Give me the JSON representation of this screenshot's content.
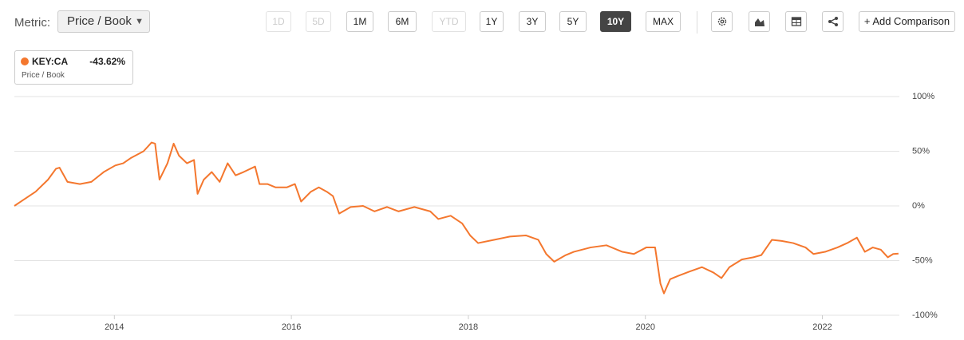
{
  "toolbar": {
    "metric_label": "Metric:",
    "metric_value": "Price / Book",
    "ranges": [
      "1D",
      "5D",
      "1M",
      "6M",
      "YTD",
      "1Y",
      "3Y",
      "5Y",
      "10Y",
      "MAX"
    ],
    "active_index": 8,
    "disabled_indices": [
      0,
      1,
      4
    ],
    "add_comparison": "+ Add Comparison"
  },
  "legend": {
    "change": "-43.62%",
    "subtitle": "Price / Book"
  },
  "chart_data": {
    "type": "line",
    "x": [
      2012.87,
      2012.98,
      2013.11,
      2013.25,
      2013.34,
      2013.38,
      2013.47,
      2013.61,
      2013.74,
      2013.88,
      2014.01,
      2014.1,
      2014.19,
      2014.33,
      2014.42,
      2014.46,
      2014.51,
      2014.6,
      2014.67,
      2014.73,
      2014.82,
      2014.9,
      2014.94,
      2015.01,
      2015.1,
      2015.19,
      2015.28,
      2015.37,
      2015.46,
      2015.59,
      2015.64,
      2015.73,
      2015.82,
      2015.95,
      2016.04,
      2016.11,
      2016.22,
      2016.31,
      2016.4,
      2016.47,
      2016.54,
      2016.67,
      2016.81,
      2016.94,
      2017.08,
      2017.21,
      2017.39,
      2017.57,
      2017.66,
      2017.8,
      2017.93,
      2018.02,
      2018.11,
      2018.29,
      2018.47,
      2018.65,
      2018.79,
      2018.88,
      2018.97,
      2019.1,
      2019.19,
      2019.38,
      2019.56,
      2019.74,
      2019.87,
      2020.01,
      2020.11,
      2020.17,
      2020.21,
      2020.28,
      2020.37,
      2020.5,
      2020.64,
      2020.77,
      2020.86,
      2020.95,
      2021.09,
      2021.22,
      2021.31,
      2021.43,
      2021.54,
      2021.67,
      2021.81,
      2021.9,
      2022.03,
      2022.17,
      2022.28,
      2022.39,
      2022.48,
      2022.57,
      2022.66,
      2022.74,
      2022.8,
      2022.86
    ],
    "series": [
      {
        "name": "KEY:CA",
        "color": "#f4772e",
        "values": [
          0,
          6,
          13,
          24,
          34,
          35,
          22,
          20,
          22,
          31,
          37,
          39,
          44,
          50,
          58,
          57,
          24,
          39,
          57,
          46,
          39,
          42,
          11,
          24,
          31,
          22,
          39,
          28,
          31,
          36,
          20,
          20,
          17,
          17,
          20,
          4,
          13,
          17,
          13,
          9,
          -7,
          -1,
          0,
          -5,
          -1,
          -5,
          -1,
          -5,
          -12,
          -9,
          -16,
          -27,
          -34,
          -31,
          -28,
          -27,
          -31,
          -44,
          -51,
          -45,
          -42,
          -38,
          -36,
          -42,
          -44,
          -38,
          -38,
          -71,
          -80,
          -67,
          -64,
          -60,
          -56,
          -61,
          -66,
          -56,
          -49,
          -47,
          -45,
          -31,
          -32,
          -34,
          -38,
          -44,
          -42,
          -38,
          -34,
          -29,
          -42,
          -38,
          -40,
          -47,
          -44,
          -43.62
        ]
      }
    ],
    "xlim": [
      2012.87,
      2022.87
    ],
    "xticks": [
      2014,
      2016,
      2018,
      2020,
      2022
    ],
    "ylim": [
      -100,
      100
    ],
    "yticks": [
      {
        "value": 100,
        "label": "100%"
      },
      {
        "value": 50,
        "label": "50%"
      },
      {
        "value": 0,
        "label": "0%"
      },
      {
        "value": -50,
        "label": "-50%"
      },
      {
        "value": -100,
        "label": "-100%"
      }
    ],
    "grid": true
  }
}
